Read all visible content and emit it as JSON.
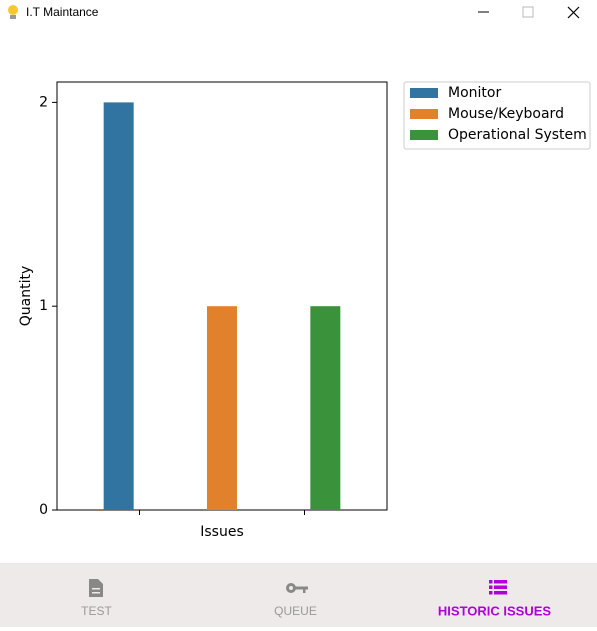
{
  "window": {
    "title": "I.T Maintance"
  },
  "chart_data": {
    "type": "bar",
    "x_label": "Issues",
    "y_label": "Quantity",
    "categories": [
      null,
      null
    ],
    "series": [
      {
        "name": "Monitor",
        "color": "#3274a1",
        "values": [
          2,
          null
        ]
      },
      {
        "name": "Mouse/Keyboard",
        "color": "#e1812c",
        "values": [
          1,
          null
        ]
      },
      {
        "name": "Operational System",
        "color": "#3a923a",
        "values": [
          null,
          1
        ]
      }
    ],
    "ylim": [
      0,
      2.1
    ],
    "yticks": [
      0,
      1,
      2
    ],
    "grid": false,
    "legend": "outside-upper-right"
  },
  "tabs": [
    {
      "label": "TEST",
      "active": false
    },
    {
      "label": "QUEUE",
      "active": false
    },
    {
      "label": "HISTORIC ISSUES",
      "active": true
    }
  ]
}
